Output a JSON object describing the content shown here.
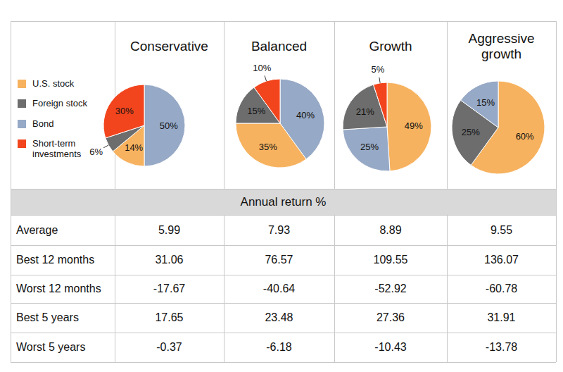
{
  "chart_data": [
    {
      "type": "pie",
      "title": "Conservative",
      "categories": [
        "Bond",
        "U.S. stock",
        "Foreign stock",
        "Short-term investments"
      ],
      "values": [
        50,
        14,
        6,
        30
      ],
      "value_labels": [
        "50%",
        "14%",
        "6%",
        "30%"
      ],
      "colors": [
        "#96a9c6",
        "#f7b25f",
        "#6d6d6d",
        "#f2451d"
      ],
      "data_labels": true
    },
    {
      "type": "pie",
      "title": "Balanced",
      "categories": [
        "Bond",
        "U.S. stock",
        "Foreign stock",
        "Short-term investments"
      ],
      "values": [
        40,
        35,
        15,
        10
      ],
      "value_labels": [
        "40%",
        "35%",
        "15%",
        "10%"
      ],
      "colors": [
        "#96a9c6",
        "#f7b25f",
        "#6d6d6d",
        "#f2451d"
      ],
      "data_labels": true
    },
    {
      "type": "pie",
      "title": "Growth",
      "categories": [
        "U.S. stock",
        "Bond",
        "Foreign stock",
        "Short-term investments"
      ],
      "values": [
        49,
        25,
        21,
        5
      ],
      "value_labels": [
        "49%",
        "25%",
        "21%",
        "5%"
      ],
      "colors": [
        "#f7b25f",
        "#96a9c6",
        "#6d6d6d",
        "#f2451d"
      ],
      "data_labels": true
    },
    {
      "type": "pie",
      "title": "Aggressive growth",
      "categories": [
        "U.S. stock",
        "Foreign stock",
        "Bond"
      ],
      "values": [
        60,
        25,
        15
      ],
      "value_labels": [
        "60%",
        "25%",
        "15%"
      ],
      "colors": [
        "#f7b25f",
        "#6d6d6d",
        "#96a9c6"
      ],
      "data_labels": true
    }
  ],
  "legend_box": {
    "items": [
      {
        "name": "U.S. stock",
        "color": "#f7b25f"
      },
      {
        "name": "Foreign stock",
        "color": "#6d6d6d"
      },
      {
        "name": "Bond",
        "color": "#96a9c6"
      },
      {
        "name": "Short-term investments",
        "color": "#f2451d"
      }
    ]
  },
  "table": {
    "title": "Annual return %",
    "rows": [
      [
        "Average",
        5.99,
        7.93,
        8.89,
        9.55
      ],
      [
        "Best 12 months",
        31.06,
        76.57,
        109.55,
        136.07
      ],
      [
        "Worst 12 months",
        -17.67,
        -40.64,
        -52.92,
        -60.78
      ],
      [
        "Best 5 years",
        17.65,
        23.48,
        27.36,
        31.91
      ],
      [
        "Worst 5 years",
        -0.37,
        -6.18,
        -10.43,
        -13.78
      ]
    ]
  }
}
